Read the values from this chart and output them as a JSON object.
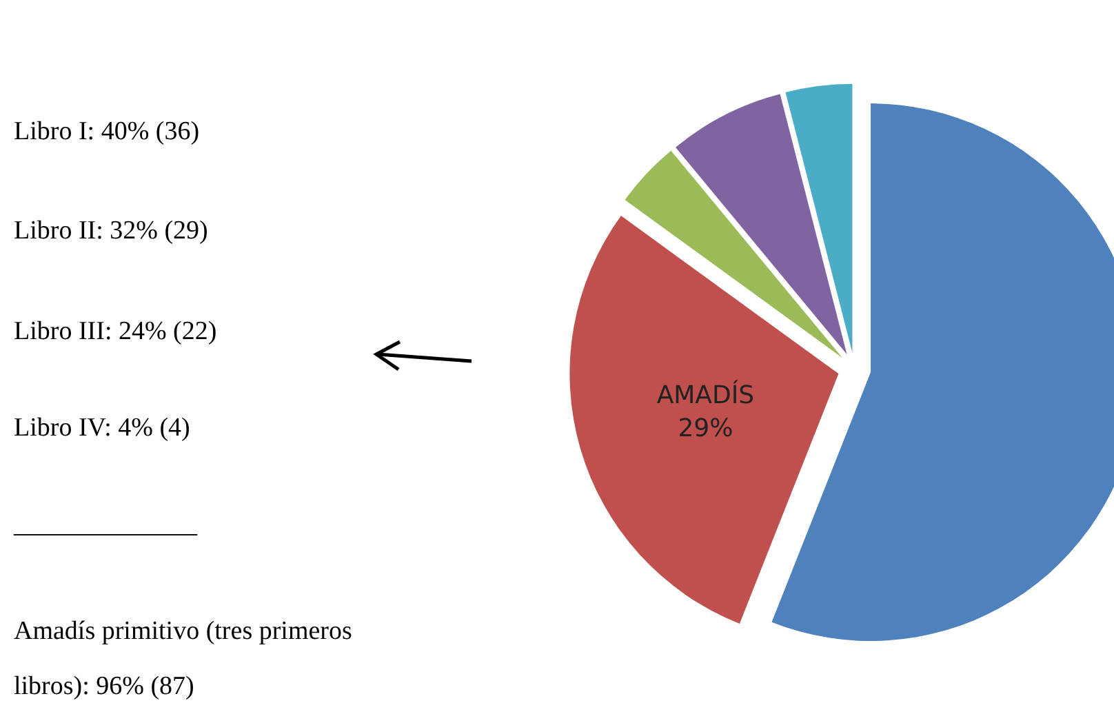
{
  "chart_data": {
    "type": "pie",
    "categories": [
      null,
      "AMADÍS",
      null,
      null,
      null
    ],
    "values": [
      56,
      29,
      4,
      7,
      4
    ],
    "value_labels": [
      null,
      "29%",
      null,
      null,
      null
    ],
    "colors": [
      "#4f81bd",
      "#c0504d",
      "#9bbb59",
      "#8064a2",
      "#4bacc6"
    ],
    "annotations": [
      "Libro I: 40% (36)",
      "Libro II: 32% (29)",
      "Libro III: 24% (22)",
      "Libro IV: 4% (4)",
      "______________",
      "Amadís primitivo (tres primeros libros): 96% (87)"
    ],
    "legend": false
  }
}
